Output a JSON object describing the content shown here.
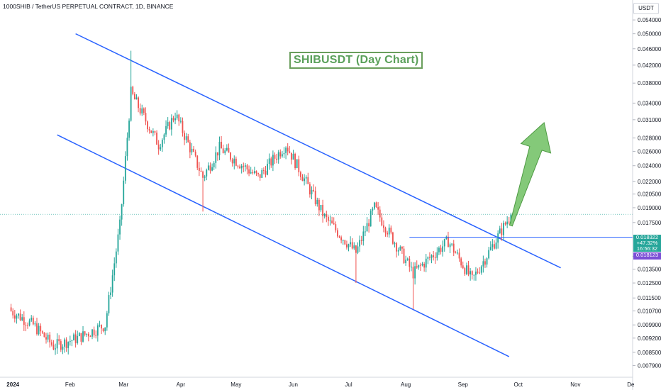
{
  "header": {
    "title": "1000SHIB / TetherUS PERPETUAL CONTRACT, 1D, BINANCE"
  },
  "annotation": {
    "text": "SHIBUSDT (Day Chart)"
  },
  "price_panel": {
    "unit": "USDT",
    "last_price": "0.018322",
    "change": "+47.32%",
    "countdown": "16:56:32",
    "ref_price": "0.018123"
  },
  "colors": {
    "up": "#26a69a",
    "down": "#ef5350",
    "channel": "#2962ff",
    "arrow": "#6fbf62",
    "last_tag": "#26a69a",
    "ref_tag": "#7b4fd6"
  },
  "chart_data": {
    "type": "candlestick",
    "title": "1000SHIB / TetherUS PERPETUAL CONTRACT, 1D, BINANCE",
    "yscale": "log",
    "ylim": [
      0.0074,
      0.058
    ],
    "y_tick_labels": [
      "0.054000",
      "0.050000",
      "0.046000",
      "0.042000",
      "0.038000",
      "0.034000",
      "0.031000",
      "0.028000",
      "0.026000",
      "0.024000",
      "0.022000",
      "0.020500",
      "0.019000",
      "0.017500",
      "0.016123",
      "0.014500",
      "0.013500",
      "0.012500",
      "0.011500",
      "0.010700",
      "0.009900",
      "0.009200",
      "0.008500",
      "0.007900"
    ],
    "x_tick_labels": [
      "2024",
      "Feb",
      "Mar",
      "Apr",
      "May",
      "Jun",
      "Jul",
      "Aug",
      "Sep",
      "Oct",
      "Nov",
      "De"
    ],
    "x_range": [
      "2023-12-25",
      "2024-12-02"
    ],
    "ohlc_key_points": [
      {
        "date": "2023-12-31",
        "close": 0.0107
      },
      {
        "date": "2024-01-12",
        "close": 0.0099
      },
      {
        "date": "2024-01-23",
        "close": 0.0088
      },
      {
        "date": "2024-02-05",
        "close": 0.0092
      },
      {
        "date": "2024-02-20",
        "close": 0.0099
      },
      {
        "date": "2024-02-28",
        "close": 0.0172
      },
      {
        "date": "2024-03-05",
        "high": 0.0455,
        "close": 0.036
      },
      {
        "date": "2024-03-20",
        "close": 0.027
      },
      {
        "date": "2024-03-29",
        "close": 0.032
      },
      {
        "date": "2024-04-13",
        "low": 0.0186,
        "close": 0.0225
      },
      {
        "date": "2024-04-22",
        "close": 0.0265
      },
      {
        "date": "2024-05-13",
        "close": 0.0225
      },
      {
        "date": "2024-05-28",
        "close": 0.027
      },
      {
        "date": "2024-06-18",
        "close": 0.018
      },
      {
        "date": "2024-07-05",
        "low": 0.0125,
        "close": 0.0148
      },
      {
        "date": "2024-07-15",
        "close": 0.019
      },
      {
        "date": "2024-08-05",
        "low": 0.0108,
        "close": 0.0132
      },
      {
        "date": "2024-08-24",
        "close": 0.0158
      },
      {
        "date": "2024-09-06",
        "close": 0.0127
      },
      {
        "date": "2024-09-27",
        "close": 0.0183
      }
    ],
    "channel": {
      "upper": [
        {
          "date": "2024-02-04",
          "price": 0.05
        },
        {
          "date": "2024-10-24",
          "price": 0.0136
        }
      ],
      "lower": [
        {
          "date": "2024-01-25",
          "price": 0.0285
        },
        {
          "date": "2024-09-26",
          "price": 0.0083
        }
      ]
    },
    "horizontal_lines": [
      {
        "price": 0.016123,
        "from": "2024-08-03"
      }
    ]
  }
}
